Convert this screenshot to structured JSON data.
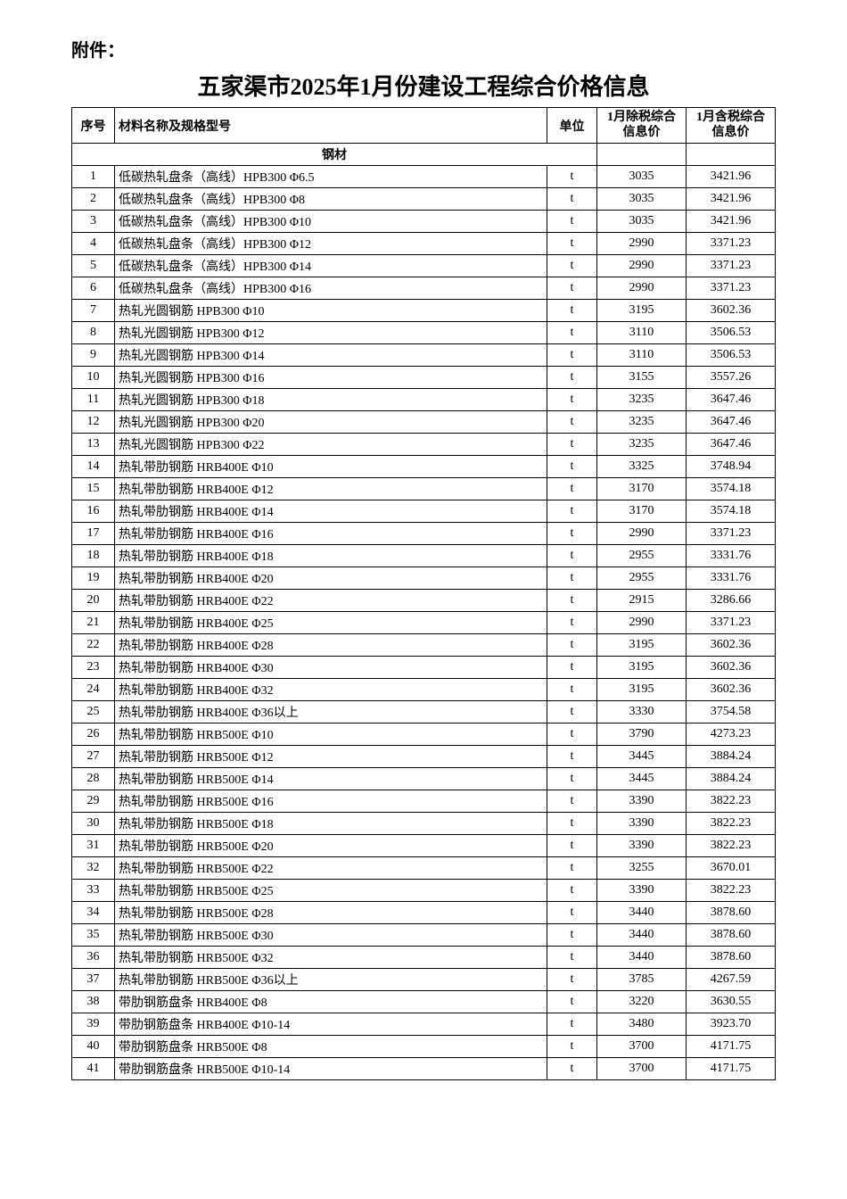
{
  "attachment_label": "附件：",
  "title": "五家渠市2025年1月份建设工程综合价格信息",
  "headers": {
    "seq": "序号",
    "name": "材料名称及规格型号",
    "unit": "单位",
    "price_excl": "1月除税综合信息价",
    "price_incl": "1月含税综合信息价"
  },
  "section_name": "钢材",
  "rows": [
    {
      "seq": "1",
      "name": "低碳热轧盘条（高线）HPB300 Φ6.5",
      "unit": "t",
      "excl": "3035",
      "incl": "3421.96"
    },
    {
      "seq": "2",
      "name": "低碳热轧盘条（高线）HPB300 Φ8",
      "unit": "t",
      "excl": "3035",
      "incl": "3421.96"
    },
    {
      "seq": "3",
      "name": "低碳热轧盘条（高线）HPB300 Φ10",
      "unit": "t",
      "excl": "3035",
      "incl": "3421.96"
    },
    {
      "seq": "4",
      "name": "低碳热轧盘条（高线）HPB300 Φ12",
      "unit": "t",
      "excl": "2990",
      "incl": "3371.23"
    },
    {
      "seq": "5",
      "name": "低碳热轧盘条（高线）HPB300 Φ14",
      "unit": "t",
      "excl": "2990",
      "incl": "3371.23"
    },
    {
      "seq": "6",
      "name": "低碳热轧盘条（高线）HPB300 Φ16",
      "unit": "t",
      "excl": "2990",
      "incl": "3371.23"
    },
    {
      "seq": "7",
      "name": "热轧光圆钢筋 HPB300 Φ10",
      "unit": "t",
      "excl": "3195",
      "incl": "3602.36"
    },
    {
      "seq": "8",
      "name": "热轧光圆钢筋 HPB300 Φ12",
      "unit": "t",
      "excl": "3110",
      "incl": "3506.53"
    },
    {
      "seq": "9",
      "name": "热轧光圆钢筋 HPB300 Φ14",
      "unit": "t",
      "excl": "3110",
      "incl": "3506.53"
    },
    {
      "seq": "10",
      "name": "热轧光圆钢筋 HPB300 Φ16",
      "unit": "t",
      "excl": "3155",
      "incl": "3557.26"
    },
    {
      "seq": "11",
      "name": "热轧光圆钢筋 HPB300 Φ18",
      "unit": "t",
      "excl": "3235",
      "incl": "3647.46"
    },
    {
      "seq": "12",
      "name": "热轧光圆钢筋 HPB300 Φ20",
      "unit": "t",
      "excl": "3235",
      "incl": "3647.46"
    },
    {
      "seq": "13",
      "name": "热轧光圆钢筋 HPB300 Φ22",
      "unit": "t",
      "excl": "3235",
      "incl": "3647.46"
    },
    {
      "seq": "14",
      "name": "热轧带肋钢筋 HRB400E Φ10",
      "unit": "t",
      "excl": "3325",
      "incl": "3748.94"
    },
    {
      "seq": "15",
      "name": "热轧带肋钢筋 HRB400E Φ12",
      "unit": "t",
      "excl": "3170",
      "incl": "3574.18"
    },
    {
      "seq": "16",
      "name": "热轧带肋钢筋 HRB400E Φ14",
      "unit": "t",
      "excl": "3170",
      "incl": "3574.18"
    },
    {
      "seq": "17",
      "name": "热轧带肋钢筋 HRB400E Φ16",
      "unit": "t",
      "excl": "2990",
      "incl": "3371.23"
    },
    {
      "seq": "18",
      "name": "热轧带肋钢筋 HRB400E Φ18",
      "unit": "t",
      "excl": "2955",
      "incl": "3331.76"
    },
    {
      "seq": "19",
      "name": "热轧带肋钢筋 HRB400E Φ20",
      "unit": "t",
      "excl": "2955",
      "incl": "3331.76"
    },
    {
      "seq": "20",
      "name": "热轧带肋钢筋 HRB400E Φ22",
      "unit": "t",
      "excl": "2915",
      "incl": "3286.66"
    },
    {
      "seq": "21",
      "name": "热轧带肋钢筋 HRB400E Φ25",
      "unit": "t",
      "excl": "2990",
      "incl": "3371.23"
    },
    {
      "seq": "22",
      "name": "热轧带肋钢筋 HRB400E Φ28",
      "unit": "t",
      "excl": "3195",
      "incl": "3602.36"
    },
    {
      "seq": "23",
      "name": "热轧带肋钢筋 HRB400E Φ30",
      "unit": "t",
      "excl": "3195",
      "incl": "3602.36"
    },
    {
      "seq": "24",
      "name": "热轧带肋钢筋 HRB400E Φ32",
      "unit": "t",
      "excl": "3195",
      "incl": "3602.36"
    },
    {
      "seq": "25",
      "name": "热轧带肋钢筋 HRB400E Φ36以上",
      "unit": "t",
      "excl": "3330",
      "incl": "3754.58"
    },
    {
      "seq": "26",
      "name": "热轧带肋钢筋 HRB500E Φ10",
      "unit": "t",
      "excl": "3790",
      "incl": "4273.23"
    },
    {
      "seq": "27",
      "name": "热轧带肋钢筋 HRB500E Φ12",
      "unit": "t",
      "excl": "3445",
      "incl": "3884.24"
    },
    {
      "seq": "28",
      "name": "热轧带肋钢筋 HRB500E Φ14",
      "unit": "t",
      "excl": "3445",
      "incl": "3884.24"
    },
    {
      "seq": "29",
      "name": "热轧带肋钢筋 HRB500E Φ16",
      "unit": "t",
      "excl": "3390",
      "incl": "3822.23"
    },
    {
      "seq": "30",
      "name": "热轧带肋钢筋 HRB500E Φ18",
      "unit": "t",
      "excl": "3390",
      "incl": "3822.23"
    },
    {
      "seq": "31",
      "name": "热轧带肋钢筋 HRB500E Φ20",
      "unit": "t",
      "excl": "3390",
      "incl": "3822.23"
    },
    {
      "seq": "32",
      "name": "热轧带肋钢筋 HRB500E Φ22",
      "unit": "t",
      "excl": "3255",
      "incl": "3670.01"
    },
    {
      "seq": "33",
      "name": "热轧带肋钢筋 HRB500E Φ25",
      "unit": "t",
      "excl": "3390",
      "incl": "3822.23"
    },
    {
      "seq": "34",
      "name": "热轧带肋钢筋 HRB500E Φ28",
      "unit": "t",
      "excl": "3440",
      "incl": "3878.60"
    },
    {
      "seq": "35",
      "name": "热轧带肋钢筋 HRB500E Φ30",
      "unit": "t",
      "excl": "3440",
      "incl": "3878.60"
    },
    {
      "seq": "36",
      "name": "热轧带肋钢筋 HRB500E Φ32",
      "unit": "t",
      "excl": "3440",
      "incl": "3878.60"
    },
    {
      "seq": "37",
      "name": "热轧带肋钢筋 HRB500E Φ36以上",
      "unit": "t",
      "excl": "3785",
      "incl": "4267.59"
    },
    {
      "seq": "38",
      "name": "带肋钢筋盘条 HRB400E Φ8",
      "unit": "t",
      "excl": "3220",
      "incl": "3630.55"
    },
    {
      "seq": "39",
      "name": "带肋钢筋盘条 HRB400E Φ10-14",
      "unit": "t",
      "excl": "3480",
      "incl": "3923.70"
    },
    {
      "seq": "40",
      "name": "带肋钢筋盘条 HRB500E Φ8",
      "unit": "t",
      "excl": "3700",
      "incl": "4171.75"
    },
    {
      "seq": "41",
      "name": "带肋钢筋盘条 HRB500E Φ10-14",
      "unit": "t",
      "excl": "3700",
      "incl": "4171.75"
    }
  ]
}
